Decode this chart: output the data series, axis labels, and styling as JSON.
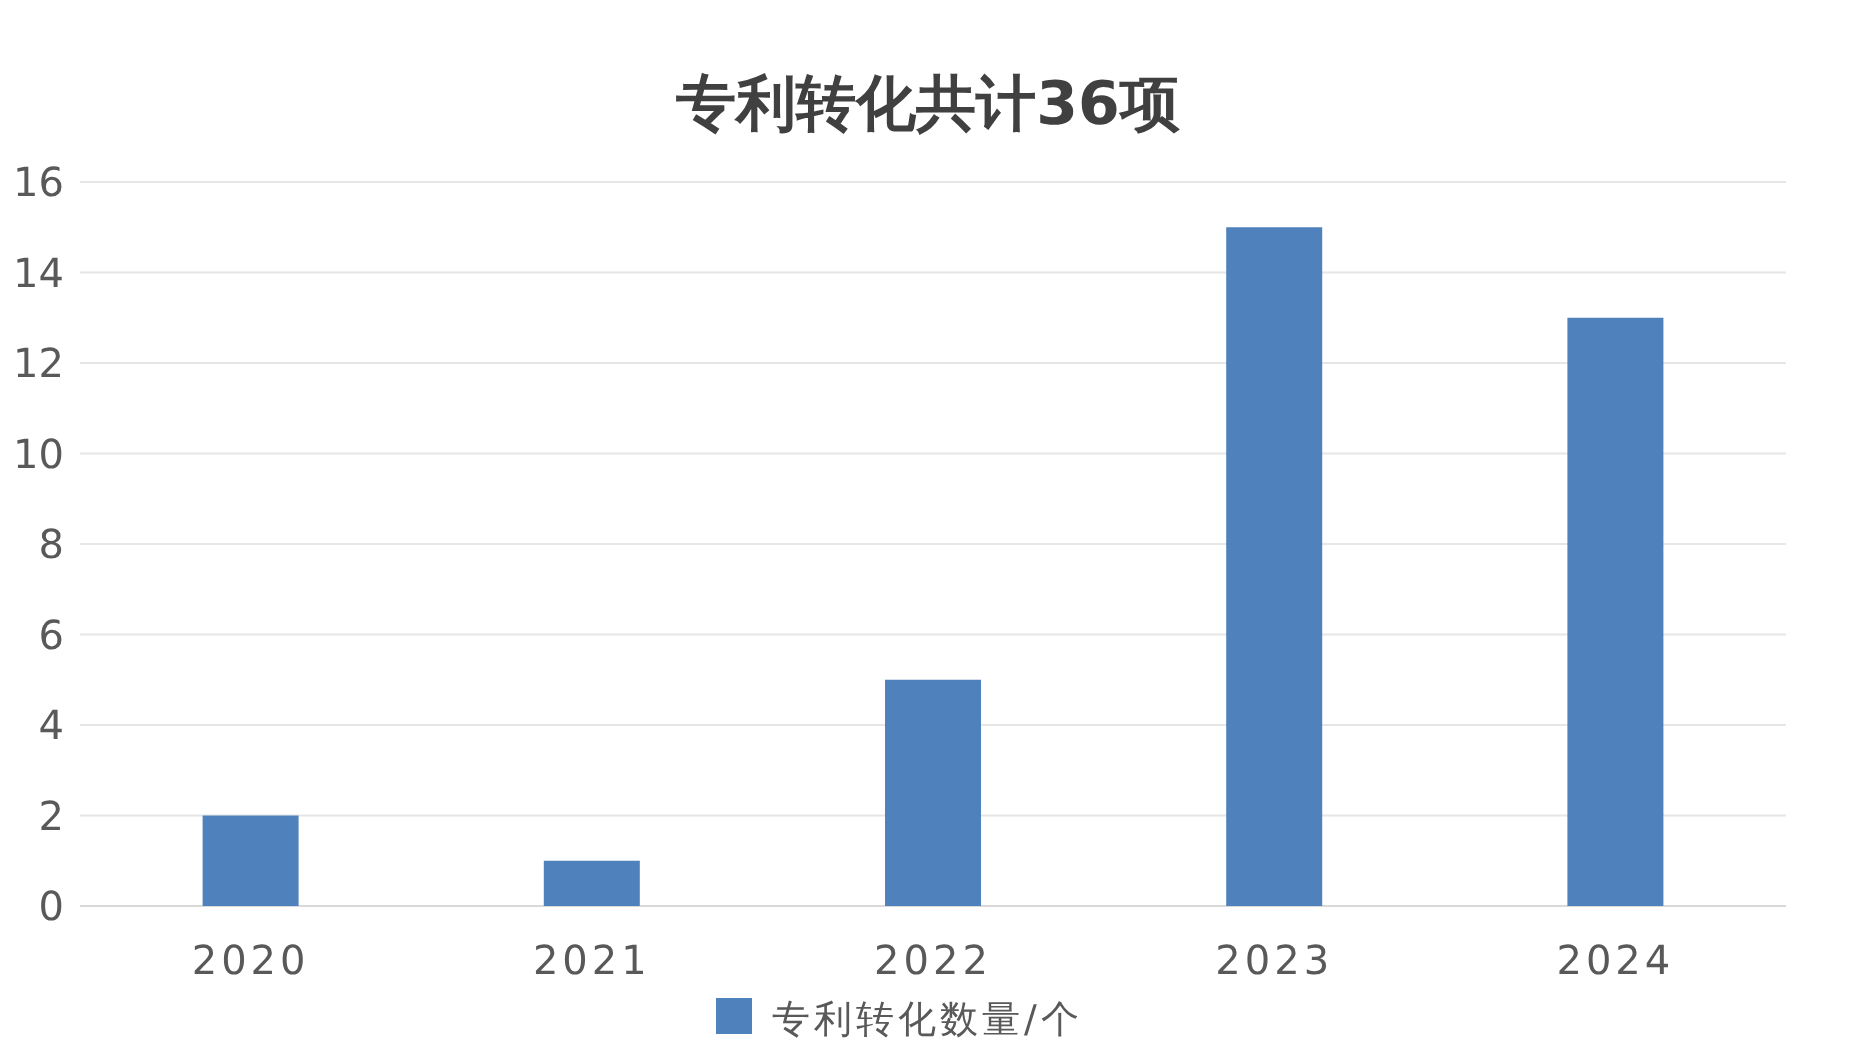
{
  "chart_data": {
    "type": "bar",
    "title": "专利转化共计36项",
    "categories": [
      "2020",
      "2021",
      "2022",
      "2023",
      "2024"
    ],
    "series": [
      {
        "name": "专利转化数量/个",
        "color": "#4f81bd",
        "values": [
          2,
          1,
          5,
          15,
          13
        ]
      }
    ],
    "ylim": [
      0,
      16
    ],
    "yticks": [
      0,
      2,
      4,
      6,
      8,
      10,
      12,
      14,
      16
    ],
    "grid": "y",
    "legend": "bottom"
  }
}
